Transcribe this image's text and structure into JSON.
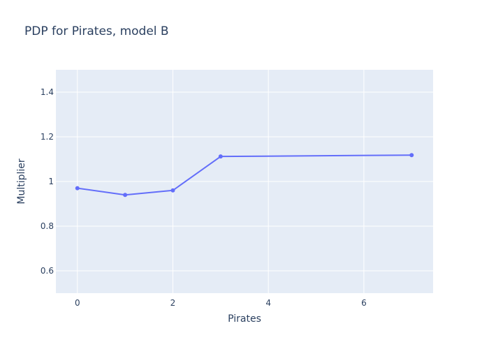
{
  "chart_data": {
    "type": "line",
    "title": "PDP for Pirates, model B",
    "xlabel": "Pirates",
    "ylabel": "Multiplier",
    "x": [
      0,
      1,
      2,
      3,
      7
    ],
    "series": [
      {
        "values": [
          0.97,
          0.94,
          0.96,
          1.112,
          1.118
        ]
      }
    ],
    "xlim": [
      -0.45,
      7.45
    ],
    "ylim": [
      0.5,
      1.5
    ],
    "x_ticks": [
      0,
      2,
      4,
      6
    ],
    "x_tick_labels": [
      "0",
      "2",
      "4",
      "6"
    ],
    "y_ticks": [
      0.6,
      0.8,
      1.0,
      1.2,
      1.4
    ],
    "y_tick_labels": [
      "0.6",
      "0.8",
      "1",
      "1.2",
      "1.4"
    ],
    "grid": true,
    "legend": "none",
    "colors": {
      "plot_background": "#E5ECF6",
      "grid": "#ffffff",
      "line": "#636EFA",
      "text": "#2a3f5f"
    }
  }
}
